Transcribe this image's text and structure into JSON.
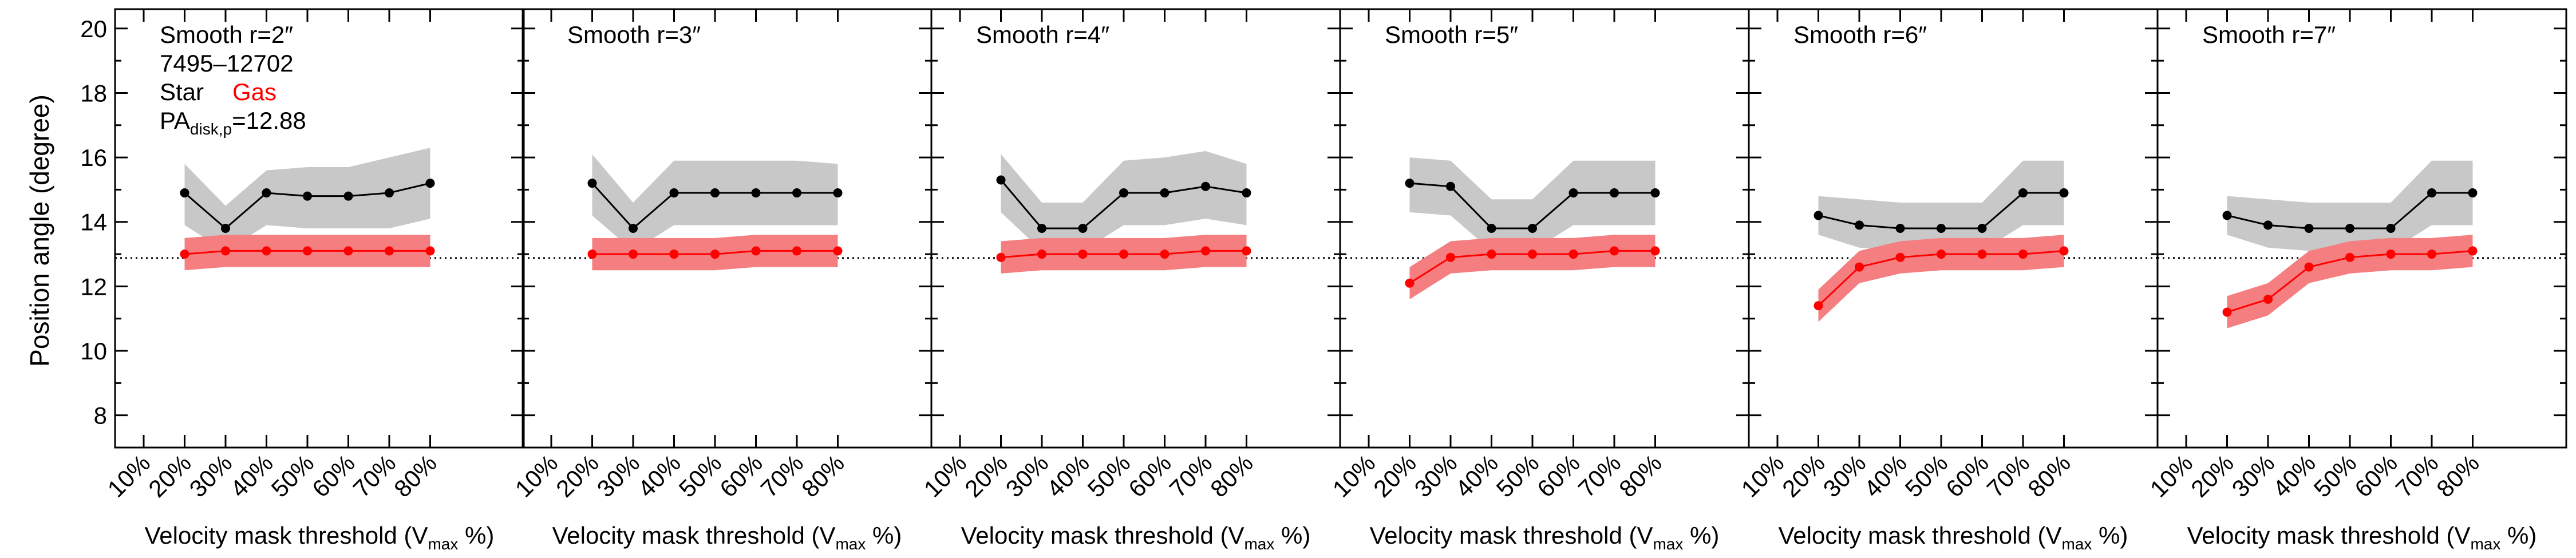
{
  "figure": {
    "ylabel": "Position angle (degree)",
    "xlabel_prefix": "Velocity mask threshold (V",
    "xlabel_sub": "max",
    "xlabel_suffix": " %)",
    "galaxy_id": "7495–12702",
    "legend_star": "Star",
    "legend_gas": "Gas",
    "pa_label_main": "PA",
    "pa_label_sub": "disk,p",
    "pa_label_value": "=12.88"
  },
  "colors": {
    "star_line": "#000000",
    "star_band": "#c8c8c8",
    "gas_line": "#ff0000",
    "gas_band": "#f47e80",
    "reference_line": "#000000"
  },
  "chart_data": [
    {
      "type": "line",
      "title": "Smooth r=2″",
      "x_ticks": [
        "10%",
        "20%",
        "30%",
        "40%",
        "50%",
        "60%",
        "70%",
        "80%"
      ],
      "x": [
        "20%",
        "30%",
        "40%",
        "50%",
        "60%",
        "70%",
        "80%"
      ],
      "ylim": [
        7,
        20.6
      ],
      "y_ticks": [
        8,
        10,
        12,
        14,
        16,
        18,
        20
      ],
      "reference_line": 12.88,
      "series": [
        {
          "name": "Star",
          "values": [
            14.9,
            13.8,
            14.9,
            14.8,
            14.8,
            14.9,
            15.2
          ],
          "upper": [
            15.8,
            14.5,
            15.6,
            15.7,
            15.7,
            16.0,
            16.3
          ],
          "lower": [
            13.9,
            13.1,
            13.9,
            13.8,
            13.8,
            13.8,
            14.1
          ]
        },
        {
          "name": "Gas",
          "values": [
            13.0,
            13.1,
            13.1,
            13.1,
            13.1,
            13.1,
            13.1
          ],
          "upper": [
            13.5,
            13.6,
            13.6,
            13.6,
            13.6,
            13.6,
            13.6
          ],
          "lower": [
            12.5,
            12.6,
            12.6,
            12.6,
            12.6,
            12.6,
            12.6
          ]
        }
      ]
    },
    {
      "type": "line",
      "title": "Smooth r=3″",
      "x_ticks": [
        "10%",
        "20%",
        "30%",
        "40%",
        "50%",
        "60%",
        "70%",
        "80%"
      ],
      "x": [
        "20%",
        "30%",
        "40%",
        "50%",
        "60%",
        "70%",
        "80%"
      ],
      "ylim": [
        7,
        20.6
      ],
      "y_ticks": [
        8,
        10,
        12,
        14,
        16,
        18,
        20
      ],
      "reference_line": 12.88,
      "series": [
        {
          "name": "Star",
          "values": [
            15.2,
            13.8,
            14.9,
            14.9,
            14.9,
            14.9,
            14.9
          ],
          "upper": [
            16.1,
            14.6,
            15.9,
            15.9,
            15.9,
            15.9,
            15.8
          ],
          "lower": [
            14.2,
            13.1,
            13.9,
            13.9,
            13.9,
            13.9,
            13.9
          ]
        },
        {
          "name": "Gas",
          "values": [
            13.0,
            13.0,
            13.0,
            13.0,
            13.1,
            13.1,
            13.1
          ],
          "upper": [
            13.5,
            13.5,
            13.5,
            13.5,
            13.6,
            13.6,
            13.6
          ],
          "lower": [
            12.5,
            12.5,
            12.5,
            12.5,
            12.6,
            12.6,
            12.6
          ]
        }
      ]
    },
    {
      "type": "line",
      "title": "Smooth r=4″",
      "x_ticks": [
        "10%",
        "20%",
        "30%",
        "40%",
        "50%",
        "60%",
        "70%",
        "80%"
      ],
      "x": [
        "20%",
        "30%",
        "40%",
        "50%",
        "60%",
        "70%",
        "80%"
      ],
      "ylim": [
        7,
        20.6
      ],
      "y_ticks": [
        8,
        10,
        12,
        14,
        16,
        18,
        20
      ],
      "reference_line": 12.88,
      "series": [
        {
          "name": "Star",
          "values": [
            15.3,
            13.8,
            13.8,
            14.9,
            14.9,
            15.1,
            14.9
          ],
          "upper": [
            16.1,
            14.6,
            14.6,
            15.9,
            16.0,
            16.2,
            15.8
          ],
          "lower": [
            14.3,
            13.1,
            13.1,
            13.9,
            13.9,
            14.1,
            13.9
          ]
        },
        {
          "name": "Gas",
          "values": [
            12.9,
            13.0,
            13.0,
            13.0,
            13.0,
            13.1,
            13.1
          ],
          "upper": [
            13.4,
            13.5,
            13.5,
            13.5,
            13.5,
            13.6,
            13.6
          ],
          "lower": [
            12.4,
            12.5,
            12.5,
            12.5,
            12.5,
            12.6,
            12.6
          ]
        }
      ]
    },
    {
      "type": "line",
      "title": "Smooth r=5″",
      "x_ticks": [
        "10%",
        "20%",
        "30%",
        "40%",
        "50%",
        "60%",
        "70%",
        "80%"
      ],
      "x": [
        "20%",
        "30%",
        "40%",
        "50%",
        "60%",
        "70%",
        "80%"
      ],
      "ylim": [
        7,
        20.6
      ],
      "y_ticks": [
        8,
        10,
        12,
        14,
        16,
        18,
        20
      ],
      "reference_line": 12.88,
      "series": [
        {
          "name": "Star",
          "values": [
            15.2,
            15.1,
            13.8,
            13.8,
            14.9,
            14.9,
            14.9
          ],
          "upper": [
            16.0,
            15.9,
            14.7,
            14.7,
            15.9,
            15.9,
            15.9
          ],
          "lower": [
            14.3,
            14.2,
            13.1,
            13.1,
            13.9,
            13.9,
            13.9
          ]
        },
        {
          "name": "Gas",
          "values": [
            12.1,
            12.9,
            13.0,
            13.0,
            13.0,
            13.1,
            13.1
          ],
          "upper": [
            12.6,
            13.4,
            13.5,
            13.5,
            13.5,
            13.6,
            13.6
          ],
          "lower": [
            11.6,
            12.4,
            12.5,
            12.5,
            12.5,
            12.6,
            12.6
          ]
        }
      ]
    },
    {
      "type": "line",
      "title": "Smooth r=6″",
      "x_ticks": [
        "10%",
        "20%",
        "30%",
        "40%",
        "50%",
        "60%",
        "70%",
        "80%"
      ],
      "x": [
        "20%",
        "30%",
        "40%",
        "50%",
        "60%",
        "70%",
        "80%"
      ],
      "ylim": [
        7,
        20.6
      ],
      "y_ticks": [
        8,
        10,
        12,
        14,
        16,
        18,
        20
      ],
      "reference_line": 12.88,
      "series": [
        {
          "name": "Star",
          "values": [
            14.2,
            13.9,
            13.8,
            13.8,
            13.8,
            14.9,
            14.9
          ],
          "upper": [
            14.8,
            14.7,
            14.6,
            14.6,
            14.6,
            15.9,
            15.9
          ],
          "lower": [
            13.6,
            13.2,
            13.1,
            13.1,
            13.1,
            13.9,
            13.9
          ]
        },
        {
          "name": "Gas",
          "values": [
            11.4,
            12.6,
            12.9,
            13.0,
            13.0,
            13.0,
            13.1
          ],
          "upper": [
            11.9,
            13.1,
            13.4,
            13.5,
            13.5,
            13.5,
            13.6
          ],
          "lower": [
            10.9,
            12.1,
            12.4,
            12.5,
            12.5,
            12.5,
            12.6
          ]
        }
      ]
    },
    {
      "type": "line",
      "title": "Smooth r=7″",
      "x_ticks": [
        "10%",
        "20%",
        "30%",
        "40%",
        "50%",
        "60%",
        "70%",
        "80%"
      ],
      "x": [
        "20%",
        "30%",
        "40%",
        "50%",
        "60%",
        "70%",
        "80%"
      ],
      "ylim": [
        7,
        20.6
      ],
      "y_ticks": [
        8,
        10,
        12,
        14,
        16,
        18,
        20
      ],
      "reference_line": 12.88,
      "series": [
        {
          "name": "Star",
          "values": [
            14.2,
            13.9,
            13.8,
            13.8,
            13.8,
            14.9,
            14.9
          ],
          "upper": [
            14.8,
            14.7,
            14.6,
            14.6,
            14.6,
            15.9,
            15.9
          ],
          "lower": [
            13.6,
            13.2,
            13.1,
            13.1,
            13.1,
            13.9,
            13.9
          ]
        },
        {
          "name": "Gas",
          "values": [
            11.2,
            11.6,
            12.6,
            12.9,
            13.0,
            13.0,
            13.1
          ],
          "upper": [
            11.7,
            12.1,
            13.1,
            13.4,
            13.5,
            13.5,
            13.6
          ],
          "lower": [
            10.7,
            11.1,
            12.1,
            12.4,
            12.5,
            12.5,
            12.6
          ]
        }
      ]
    }
  ]
}
